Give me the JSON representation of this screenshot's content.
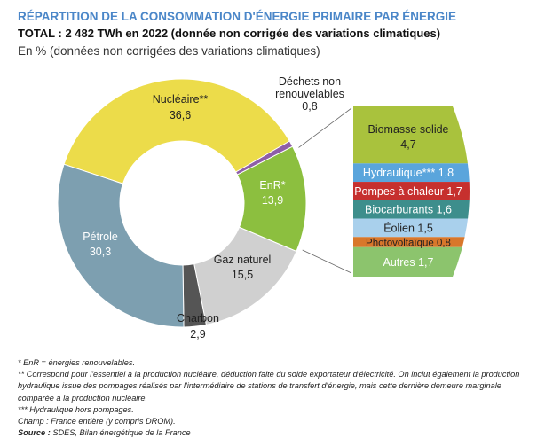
{
  "title": "RÉPARTITION DE LA CONSOMMATION D'ÉNERGIE PRIMAIRE PAR ÉNERGIE",
  "subtitle": "TOTAL : 2 482 TWh en 2022 (donnée non corrigée des variations climatiques)",
  "unit_note": "En % (données non corrigées des variations climatiques)",
  "chart_data": {
    "type": "pie",
    "donut": true,
    "slices": [
      {
        "label": "Déchets non renouvelables",
        "value": 0.8,
        "value_text": "0,8",
        "color": "#8e5ea8"
      },
      {
        "label": "EnR*",
        "value": 13.9,
        "value_text": "13,9",
        "color": "#8cbf3f"
      },
      {
        "label": "Gaz naturel",
        "value": 15.5,
        "value_text": "15,5",
        "color": "#d0d0d0"
      },
      {
        "label": "Charbon",
        "value": 2.9,
        "value_text": "2,9",
        "color": "#555555"
      },
      {
        "label": "Pétrole",
        "value": 30.3,
        "value_text": "30,3",
        "color": "#7d9fb0"
      },
      {
        "label": "Nucléaire**",
        "value": 36.6,
        "value_text": "36,6",
        "color": "#ecdc4a"
      }
    ],
    "enr_breakdown": [
      {
        "label": "Biomasse solide",
        "value": 4.7,
        "value_text": "4,7",
        "color": "#a9c23d"
      },
      {
        "label": "Hydraulique***",
        "value": 1.8,
        "value_text": "1,8",
        "color": "#5aa5dc"
      },
      {
        "label": "Pompes à chaleur",
        "value": 1.7,
        "value_text": "1,7",
        "color": "#c6302e"
      },
      {
        "label": "Biocarburants",
        "value": 1.6,
        "value_text": "1,6",
        "color": "#3d8e8c"
      },
      {
        "label": "Éolien",
        "value": 1.5,
        "value_text": "1,5",
        "color": "#a9d0ec"
      },
      {
        "label": "Photovoltaïque",
        "value": 0.8,
        "value_text": "0,8",
        "color": "#d8772b"
      },
      {
        "label": "Autres",
        "value": 1.7,
        "value_text": "1,7",
        "color": "#8cc46d"
      }
    ]
  },
  "notes": [
    "* EnR = énergies renouvelables.",
    "** Correspond pour l'essentiel à la production nucléaire, déduction faite du solde exportateur d'électricité. On inclut également la production hydraulique issue des pompages réalisés par l'intermédiaire de stations de transfert d'énergie, mais cette dernière demeure marginale comparée à la production nucléaire.",
    "*** Hydraulique hors pompages.",
    "Champ : France entière (y compris DROM)."
  ],
  "source_label": "Source :",
  "source_text": " SDES, Bilan énergétique de la France"
}
